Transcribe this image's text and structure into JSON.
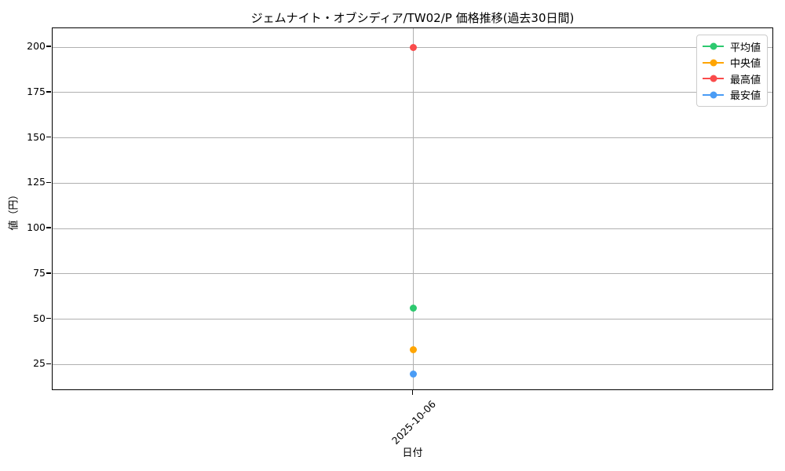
{
  "chart_data": {
    "type": "line",
    "title": "ジェムナイト・オブシディア/TW02/P 価格推移(過去30日間)",
    "xlabel": "日付",
    "ylabel": "値（円）",
    "x": [
      "2025-10-06"
    ],
    "series": [
      {
        "id": "average",
        "name": "平均値",
        "color": "#2dc96f",
        "values": [
          56
        ]
      },
      {
        "id": "median",
        "name": "中央値",
        "color": "#ffa502",
        "values": [
          33
        ]
      },
      {
        "id": "highest",
        "name": "最高値",
        "color": "#fa4b4b",
        "values": [
          200
        ]
      },
      {
        "id": "lowest",
        "name": "最安値",
        "color": "#4a9cf5",
        "values": [
          19.5
        ]
      }
    ],
    "yticks": [
      25,
      50,
      75,
      100,
      125,
      150,
      175,
      200
    ],
    "ylim": [
      10.4,
      210.4
    ],
    "grid": true,
    "legend_position": "upper right"
  },
  "colors": {
    "background": "#ffffff",
    "grid": "#b0b0b0",
    "spine": "#000000",
    "text": "#000000",
    "legend_border": "#cccccc"
  }
}
